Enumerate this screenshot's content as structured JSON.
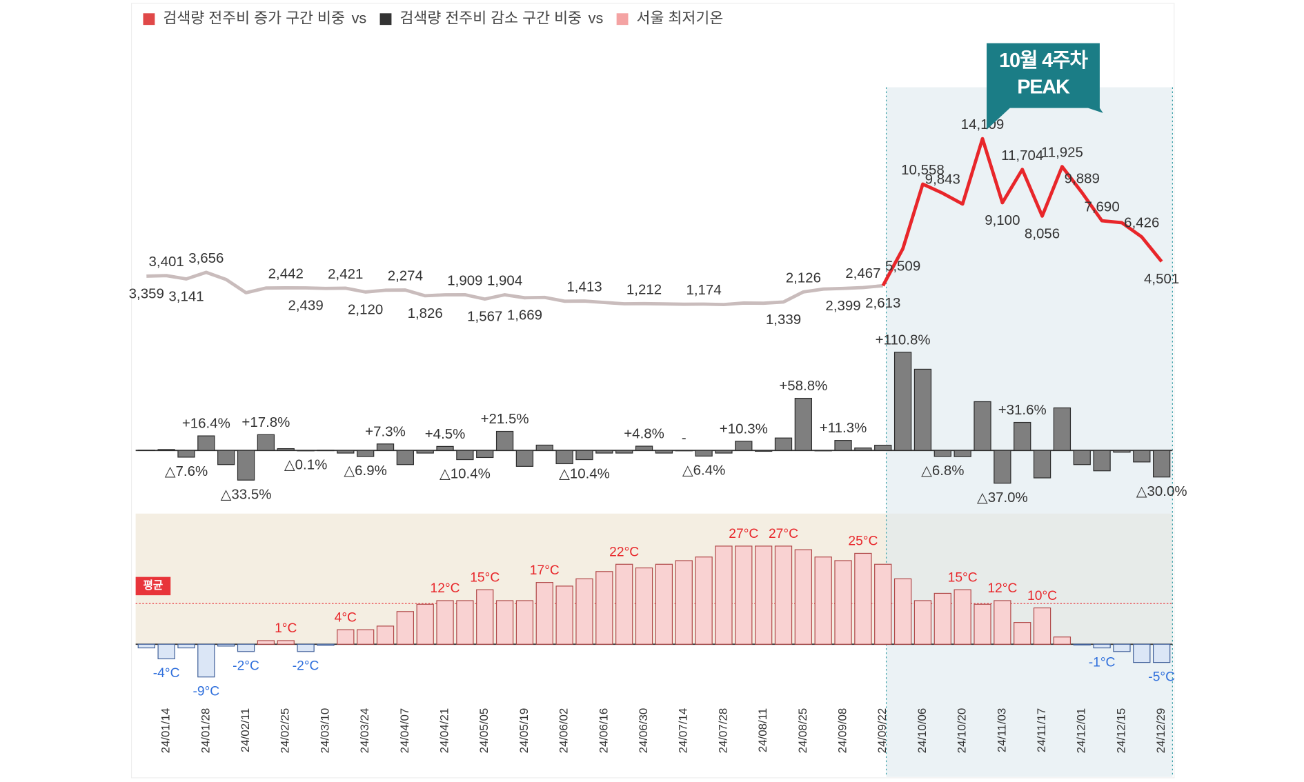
{
  "legend": {
    "separator": "vs",
    "items": [
      {
        "name": "검색량 전주비 증가 구간 비중",
        "color": "#e04848"
      },
      {
        "name": "검색량 전주비 감소 구간 비중",
        "color": "#333333"
      },
      {
        "name": "서울 최저기온",
        "color": "#f4a3a3"
      }
    ]
  },
  "chart_data": [
    {
      "type": "line",
      "ylim": [
        0,
        18000
      ],
      "highlight_from": "24/09/22",
      "highlight_color": "#e8262a",
      "annotation": [
        "10월 4주차",
        "PEAK"
      ],
      "annotation_color": "#1b7d86",
      "series": [
        {
          "color": "#c9bcbc",
          "values": [
            3359,
            3401,
            3141,
            3656,
            3102,
            2063,
            2430,
            2442,
            2439,
            2400,
            2421,
            2120,
            2260,
            2274,
            1826,
            1900,
            1909,
            1567,
            1904,
            1669,
            1700,
            1400,
            1413,
            1300,
            1200,
            1212,
            1190,
            1165,
            1174,
            1140,
            1257,
            1245,
            1339,
            2126,
            2350,
            2399,
            2467,
            2613,
            5509,
            10558,
            9843,
            9000,
            14109,
            9100,
            11704,
            8056,
            11925,
            9889,
            7690,
            7540,
            6426,
            4501
          ],
          "value_labels": [
            "3,359",
            "3,401",
            "3,141",
            "3,656",
            null,
            null,
            null,
            "2,442",
            "2,439",
            null,
            "2,421",
            "2,120",
            null,
            "2,274",
            "1,826",
            null,
            "1,909",
            "1,567",
            "1,904",
            "1,669",
            null,
            null,
            "1,413",
            null,
            null,
            "1,212",
            null,
            null,
            "1,174",
            null,
            null,
            null,
            "1,339",
            "2,126",
            null,
            "2,399",
            "2,467",
            "2,613",
            "5,509",
            "10,558",
            "9,843",
            null,
            "14,109",
            "9,100",
            "11,704",
            "8,056",
            "11,925",
            "9,889",
            "7,690",
            null,
            "6,426",
            "4,501"
          ]
        }
      ]
    },
    {
      "type": "bar",
      "ylim": [
        -60,
        120
      ],
      "series": [
        {
          "color": "#7f7f7f",
          "values": [
            0.3,
            1,
            -7.6,
            16.4,
            -16,
            -33.5,
            17.8,
            2,
            -0.1,
            0.2,
            -3,
            -6.9,
            7.3,
            -16,
            -3,
            4.5,
            -10.4,
            -8,
            21.5,
            -18,
            6,
            -15,
            -10.4,
            -3,
            -3,
            4.8,
            -3,
            0,
            -6.4,
            -3,
            10.3,
            -1,
            14,
            58.8,
            -0.5,
            11.3,
            2.8,
            5.9,
            110.8,
            91.6,
            -6.8,
            -7,
            55,
            -37,
            31.6,
            -31,
            48,
            -16,
            -23,
            -2,
            -13,
            -30
          ],
          "value_labels": [
            null,
            null,
            "△7.6%",
            "+16.4%",
            null,
            "△33.5%",
            "+17.8%",
            null,
            "△0.1%",
            null,
            null,
            "△6.9%",
            "+7.3%",
            null,
            null,
            "+4.5%",
            "△10.4%",
            null,
            "+21.5%",
            null,
            null,
            null,
            "△10.4%",
            null,
            null,
            "+4.8%",
            null,
            "-",
            "△6.4%",
            null,
            "+10.3%",
            null,
            null,
            "+58.8%",
            null,
            "+11.3%",
            null,
            null,
            "+110.8%",
            null,
            "△6.8%",
            null,
            null,
            "△37.0%",
            "+31.6%",
            null,
            null,
            null,
            null,
            null,
            null,
            "△30.0%"
          ]
        }
      ]
    },
    {
      "type": "bar",
      "ylim": [
        -10,
        30
      ],
      "categories": [
        null,
        "24/01/14",
        null,
        "24/01/28",
        null,
        "24/02/11",
        null,
        "24/02/25",
        null,
        "24/03/10",
        null,
        "24/03/24",
        null,
        "24/04/07",
        null,
        "24/04/21",
        null,
        "24/05/05",
        null,
        "24/05/19",
        null,
        "24/06/02",
        null,
        "24/06/16",
        null,
        "24/06/30",
        null,
        "24/07/14",
        null,
        "24/07/28",
        null,
        "24/08/11",
        null,
        "24/08/25",
        null,
        "24/09/08",
        null,
        "24/09/22",
        null,
        "24/10/06",
        null,
        "24/10/20",
        null,
        "24/11/03",
        null,
        "24/11/17",
        null,
        "24/12/01",
        null,
        "24/12/15",
        null,
        "24/12/29"
      ],
      "average": {
        "value": 11.2,
        "label": "평균",
        "color": "#e8343a"
      },
      "band_color": "#f4eee2",
      "series": [
        {
          "color": "#f9d2d2",
          "negative_color": "#dbe6f6",
          "label_color": "#e8262a",
          "negative_label_color": "#2f6fdc",
          "values": [
            -1,
            -4,
            -1,
            -9,
            -0.5,
            -2,
            1,
            1,
            -2,
            -0.3,
            4,
            4,
            5,
            9,
            11,
            12,
            12,
            15,
            12,
            12,
            17,
            16,
            18,
            20,
            22,
            21,
            22,
            23,
            24,
            27,
            27,
            27,
            27,
            26,
            24,
            23,
            25,
            22,
            18,
            12,
            14,
            15,
            11,
            12,
            6,
            10,
            2,
            -0.2,
            -1,
            -2,
            -5,
            -5
          ],
          "value_labels": [
            null,
            "-4°C",
            null,
            "-9°C",
            null,
            "-2°C",
            null,
            "1°C",
            "-2°C",
            null,
            "4°C",
            null,
            null,
            null,
            null,
            "12°C",
            null,
            "15°C",
            null,
            null,
            "17°C",
            null,
            null,
            null,
            "22°C",
            null,
            null,
            null,
            null,
            null,
            "27°C",
            null,
            "27°C",
            null,
            null,
            null,
            "25°C",
            null,
            null,
            null,
            null,
            "15°C",
            null,
            "12°C",
            null,
            "10°C",
            null,
            null,
            "-1°C",
            null,
            null,
            "-5°C"
          ]
        }
      ]
    }
  ]
}
